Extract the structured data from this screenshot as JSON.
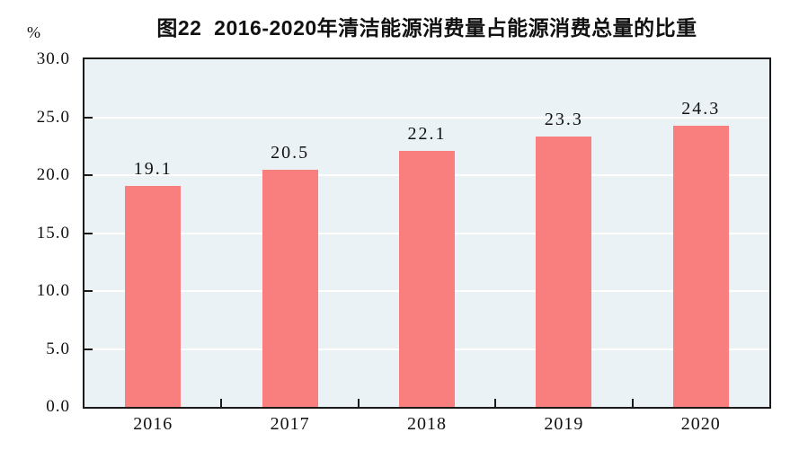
{
  "chart_data": {
    "type": "bar",
    "title": "图22  2016-2020年清洁能源消费量占能源消费总量的比重",
    "unit_label": "%",
    "categories": [
      "2016",
      "2017",
      "2018",
      "2019",
      "2020"
    ],
    "values": [
      19.1,
      20.5,
      22.1,
      23.3,
      24.3
    ],
    "value_labels": [
      "19.1",
      "20.5",
      "22.1",
      "23.3",
      "24.3"
    ],
    "xlabel": "",
    "ylabel": "%",
    "ylim": [
      0,
      30
    ],
    "ytick_step": 5,
    "ytick_labels": [
      "0.0",
      "5.0",
      "10.0",
      "15.0",
      "20.0",
      "25.0",
      "30.0"
    ],
    "grid": "horizontal",
    "legend": "none",
    "colors": {
      "bar": "#F97E7E",
      "plot_background": "#EBF2F5",
      "gridline": "#FFFFFF",
      "axis": "#1A1A1A",
      "text": "#111111"
    }
  }
}
